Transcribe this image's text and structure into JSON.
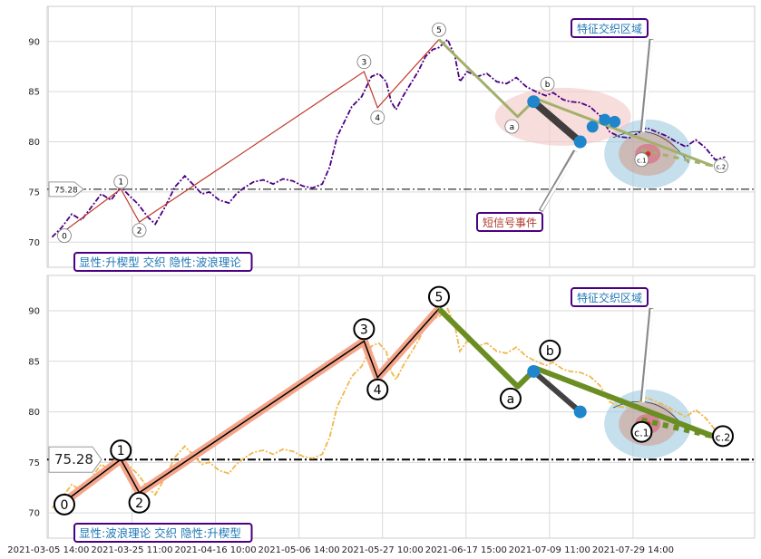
{
  "chart_data": [
    {
      "panel": "top",
      "type": "line",
      "x_ticks": [
        "2021-03-05 14:00",
        "2021-03-25 11:00",
        "2021-04-16 10:00",
        "2021-05-06 14:00",
        "2021-05-27 10:00",
        "2021-06-17 15:00",
        "2021-07-09 11:00",
        "2021-07-29 14:00"
      ],
      "ylim": [
        67.5,
        93.5
      ],
      "y_ticks": [
        70,
        75,
        80,
        85,
        90
      ],
      "grid": true,
      "reference_line": {
        "value": 75.28,
        "label": "75.28"
      },
      "price_color": "#4b0082",
      "price_style": "dashed",
      "price_series": [
        [
          0.2,
          70.5
        ],
        [
          0.6,
          71.5
        ],
        [
          1.0,
          72.8
        ],
        [
          1.4,
          72.2
        ],
        [
          1.8,
          73.5
        ],
        [
          2.2,
          74.8
        ],
        [
          2.6,
          74.2
        ],
        [
          3.0,
          75.5
        ],
        [
          3.4,
          74.5
        ],
        [
          3.7,
          73.8
        ],
        [
          4.1,
          72.5
        ],
        [
          4.4,
          71.8
        ],
        [
          4.8,
          73.5
        ],
        [
          5.2,
          75.5
        ],
        [
          5.6,
          76.6
        ],
        [
          6.0,
          75.6
        ],
        [
          6.3,
          74.8
        ],
        [
          6.6,
          75.0
        ],
        [
          7.0,
          74.2
        ],
        [
          7.4,
          73.9
        ],
        [
          7.7,
          74.8
        ],
        [
          8.0,
          75.4
        ],
        [
          8.4,
          76.0
        ],
        [
          8.8,
          76.2
        ],
        [
          9.2,
          75.8
        ],
        [
          9.6,
          76.3
        ],
        [
          10.0,
          76.1
        ],
        [
          10.4,
          75.6
        ],
        [
          10.8,
          75.4
        ],
        [
          11.2,
          75.8
        ],
        [
          11.5,
          77.5
        ],
        [
          11.8,
          80.5
        ],
        [
          12.1,
          82.0
        ],
        [
          12.4,
          83.5
        ],
        [
          12.8,
          84.5
        ],
        [
          13.2,
          86.5
        ],
        [
          13.5,
          86.8
        ],
        [
          13.8,
          86.0
        ],
        [
          14.0,
          84.0
        ],
        [
          14.2,
          83.2
        ],
        [
          14.5,
          84.6
        ],
        [
          14.8,
          85.8
        ],
        [
          15.1,
          87.0
        ],
        [
          15.4,
          88.5
        ],
        [
          15.7,
          89.2
        ],
        [
          15.95,
          89.4
        ],
        [
          16.3,
          90.2
        ],
        [
          16.6,
          88.5
        ],
        [
          16.8,
          86.0
        ],
        [
          17.1,
          87.0
        ],
        [
          17.5,
          86.5
        ],
        [
          17.9,
          86.8
        ],
        [
          18.3,
          86.0
        ],
        [
          18.7,
          85.8
        ],
        [
          19.1,
          86.4
        ],
        [
          19.5,
          85.5
        ],
        [
          19.9,
          85.0
        ],
        [
          20.3,
          84.6
        ],
        [
          20.6,
          84.9
        ],
        [
          21.0,
          84.2
        ],
        [
          21.3,
          84.0
        ],
        [
          21.7,
          83.9
        ],
        [
          22.1,
          83.5
        ],
        [
          22.5,
          82.6
        ],
        [
          22.9,
          81.0
        ],
        [
          23.3,
          80.5
        ],
        [
          23.7,
          80.4
        ],
        [
          24.0,
          80.8
        ],
        [
          24.4,
          81.4
        ],
        [
          24.8,
          81.0
        ],
        [
          25.2,
          80.6
        ],
        [
          25.6,
          80.0
        ],
        [
          26.0,
          79.5
        ],
        [
          26.4,
          80.2
        ],
        [
          26.8,
          79.4
        ],
        [
          27.2,
          78.2
        ],
        [
          27.6,
          78.5
        ]
      ],
      "wave_labels": [
        "0",
        "1",
        "2",
        "3",
        "4",
        "5",
        "a",
        "b",
        "c.1",
        "c.2"
      ],
      "wave_points": [
        [
          0.7,
          71.1
        ],
        [
          3.0,
          75.3
        ],
        [
          3.75,
          72.0
        ],
        [
          12.9,
          87.0
        ],
        [
          13.45,
          83.4
        ],
        [
          15.95,
          90.2
        ],
        [
          19.15,
          82.5
        ],
        [
          19.9,
          84.3
        ],
        [
          24.2,
          79.2
        ],
        [
          27.1,
          77.6
        ]
      ],
      "wave_color": "#c0392b",
      "corrective_color": "#a3b06b",
      "short_signal_segment": [
        [
          19.8,
          84.0
        ],
        [
          21.7,
          80.0
        ]
      ],
      "feature_zone": {
        "center": [
          24.45,
          78.8
        ],
        "outer_ellipse_color": "#9ecae1",
        "inner_color": "#d19a8a"
      },
      "signal_zone_color": "#f4c6c6",
      "annotations": [
        {
          "text": "特征交织区域",
          "color": "#1f77b4"
        },
        {
          "text": "短信号事件",
          "color": "#b03a2e"
        }
      ],
      "caption": "显性:升楔型 交织 隐性:波浪理论"
    },
    {
      "panel": "bottom",
      "type": "line",
      "x_ticks": [
        "2021-03-05 14:00",
        "2021-03-25 11:00",
        "2021-04-16 10:00",
        "2021-05-06 14:00",
        "2021-05-27 10:00",
        "2021-06-17 15:00",
        "2021-07-09 11:00",
        "2021-07-29 14:00"
      ],
      "ylim": [
        67.5,
        93.5
      ],
      "y_ticks": [
        70,
        75,
        80,
        85,
        90
      ],
      "grid": true,
      "reference_line": {
        "value": 75.28,
        "label": "75.28"
      },
      "price_color": "#f0b84a",
      "price_style": "dashed",
      "wave_labels": [
        "0",
        "1",
        "2",
        "3",
        "4",
        "5",
        "a",
        "b",
        "c.1",
        "c.2"
      ],
      "wave_points": [
        [
          0.7,
          71.1
        ],
        [
          3.0,
          75.3
        ],
        [
          3.75,
          72.0
        ],
        [
          12.9,
          87.0
        ],
        [
          13.45,
          83.4
        ],
        [
          15.95,
          90.2
        ],
        [
          19.15,
          82.5
        ],
        [
          19.9,
          84.3
        ],
        [
          24.2,
          79.2
        ],
        [
          27.1,
          77.6
        ]
      ],
      "wave_color": "#f4a58a",
      "corrective_color": "#6b8e23",
      "short_signal_segment": [
        [
          19.8,
          84.0
        ],
        [
          21.7,
          80.0
        ]
      ],
      "feature_zone": {
        "center": [
          24.45,
          78.8
        ],
        "outer_ellipse_color": "#9ecae1",
        "inner_color": "#d19a8a"
      },
      "annotations": [
        {
          "text": "特征交织区域",
          "color": "#1f77b4"
        }
      ],
      "caption": "显性:波浪理论 交织 隐性:升楔型"
    }
  ]
}
